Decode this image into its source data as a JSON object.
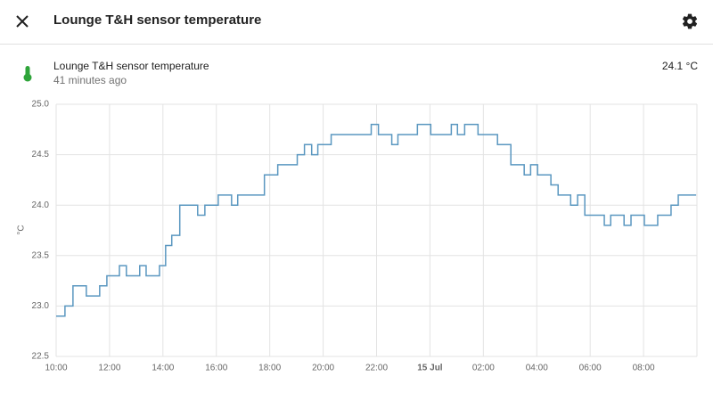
{
  "header": {
    "title": "Lounge T&H sensor temperature"
  },
  "entity": {
    "name": "Lounge T&H sensor temperature",
    "last_changed": "41 minutes ago",
    "state": "24.1 °C"
  },
  "chart_data": {
    "type": "step-line",
    "y_label": "°C",
    "x": [
      10.0,
      10.33,
      10.63,
      11.13,
      11.63,
      11.9,
      12.37,
      12.63,
      13.13,
      13.37,
      13.87,
      14.1,
      14.33,
      14.63,
      15.3,
      15.57,
      16.07,
      16.57,
      16.8,
      17.8,
      18.3,
      19.03,
      19.3,
      19.57,
      19.8,
      20.3,
      21.8,
      22.07,
      22.57,
      22.8,
      23.53,
      24.03,
      24.8,
      25.03,
      25.3,
      25.8,
      26.53,
      27.03,
      27.53,
      27.77,
      28.03,
      28.53,
      28.8,
      29.27,
      29.53,
      29.8,
      30.53,
      30.77,
      31.27,
      31.53,
      32.03,
      32.53,
      33.03,
      33.3,
      33.97
    ],
    "series": [
      {
        "name": "Lounge T&H sensor temperature",
        "color": "#5a97c0",
        "values": [
          22.9,
          23.0,
          23.2,
          23.1,
          23.2,
          23.3,
          23.4,
          23.3,
          23.4,
          23.3,
          23.4,
          23.6,
          23.7,
          24.0,
          23.9,
          24.0,
          24.1,
          24.0,
          24.1,
          24.3,
          24.4,
          24.5,
          24.6,
          24.5,
          24.6,
          24.7,
          24.8,
          24.7,
          24.6,
          24.7,
          24.8,
          24.7,
          24.8,
          24.7,
          24.8,
          24.7,
          24.6,
          24.4,
          24.3,
          24.4,
          24.3,
          24.2,
          24.1,
          24.0,
          24.1,
          23.9,
          23.8,
          23.9,
          23.8,
          23.9,
          23.8,
          23.9,
          24.0,
          24.1,
          24.1
        ]
      }
    ],
    "xlim": [
      10,
      34
    ],
    "xticks": [
      {
        "value": 10,
        "label": "10:00"
      },
      {
        "value": 12,
        "label": "12:00"
      },
      {
        "value": 14,
        "label": "14:00"
      },
      {
        "value": 16,
        "label": "16:00"
      },
      {
        "value": 18,
        "label": "18:00"
      },
      {
        "value": 20,
        "label": "20:00"
      },
      {
        "value": 22,
        "label": "22:00"
      },
      {
        "value": 24,
        "label": "15 Jul"
      },
      {
        "value": 26,
        "label": "02:00"
      },
      {
        "value": 28,
        "label": "04:00"
      },
      {
        "value": 30,
        "label": "06:00"
      },
      {
        "value": 32,
        "label": "08:00"
      }
    ],
    "ylim": [
      22.5,
      25.0
    ],
    "yticks": [
      {
        "value": 22.5,
        "label": "22.5"
      },
      {
        "value": 23.0,
        "label": "23.0"
      },
      {
        "value": 23.5,
        "label": "23.5"
      },
      {
        "value": 24.0,
        "label": "24.0"
      },
      {
        "value": 24.5,
        "label": "24.5"
      },
      {
        "value": 25.0,
        "label": "25.0"
      }
    ],
    "grid": true
  }
}
